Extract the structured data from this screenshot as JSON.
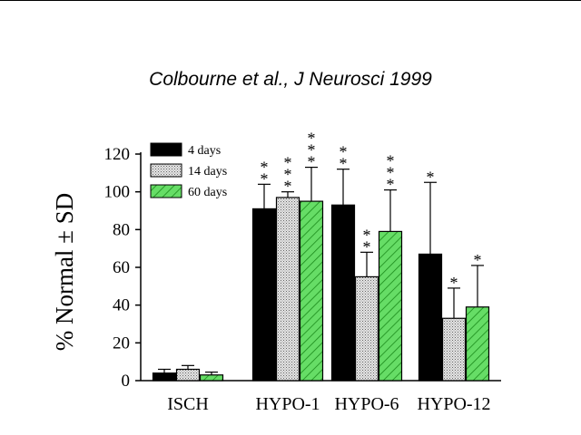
{
  "citation": "Colbourne et al., J Neurosci 1999",
  "chart_data": {
    "type": "bar",
    "title": "",
    "xlabel": "",
    "ylabel": "% Normal ± SD",
    "ylim": [
      0,
      120
    ],
    "yticks": [
      0,
      20,
      40,
      60,
      80,
      100,
      120
    ],
    "categories": [
      "ISCH",
      "HYPO-1",
      "HYPO-6",
      "HYPO-12"
    ],
    "series": [
      {
        "name": "4 days",
        "color": "#000000",
        "pattern": "solid",
        "values": [
          4,
          91,
          93,
          67
        ],
        "errors": [
          2,
          13,
          19,
          38
        ],
        "stars": [
          "",
          "**",
          "**",
          "*"
        ]
      },
      {
        "name": "14 days",
        "color": "#c8c8c8",
        "pattern": "dots",
        "values": [
          6,
          97,
          55,
          33
        ],
        "errors": [
          2,
          3,
          13,
          16
        ],
        "stars": [
          "",
          "***",
          "**",
          "*"
        ]
      },
      {
        "name": "60 days",
        "color": "#33cc33",
        "pattern": "hatch",
        "values": [
          3,
          95,
          79,
          39
        ],
        "errors": [
          1.5,
          18,
          22,
          22
        ],
        "stars": [
          "",
          "***",
          "***",
          "*"
        ]
      }
    ],
    "legend": {
      "position": "top-left"
    },
    "grid": false
  }
}
